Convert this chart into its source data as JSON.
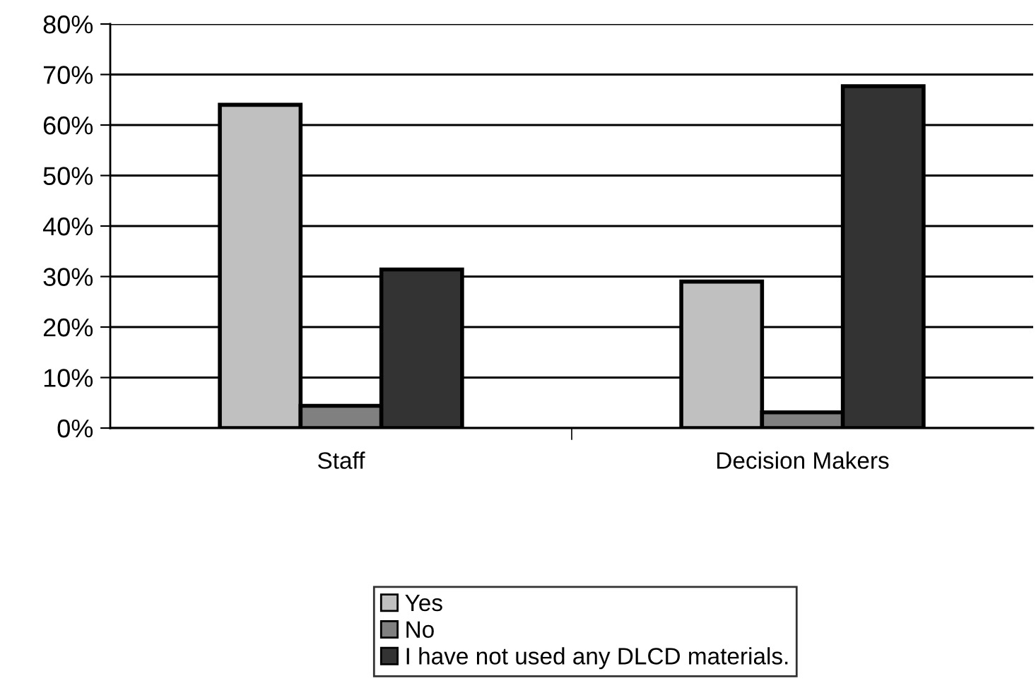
{
  "chart_data": {
    "type": "bar",
    "categories": [
      "Staff",
      "Decision Makers"
    ],
    "series": [
      {
        "name": "Yes",
        "color": "#c0c0c0",
        "values": [
          64,
          29
        ]
      },
      {
        "name": "No",
        "color": "#808080",
        "values": [
          4.4,
          3.1
        ]
      },
      {
        "name": "I have not used any DLCD materials.",
        "color": "#333333",
        "values": [
          31.4,
          67.7
        ]
      }
    ],
    "ylim": [
      0,
      80
    ],
    "yticks": [
      {
        "value": 0,
        "label": "0%"
      },
      {
        "value": 10,
        "label": "10%"
      },
      {
        "value": 20,
        "label": "20%"
      },
      {
        "value": 30,
        "label": "30%"
      },
      {
        "value": 40,
        "label": "40%"
      },
      {
        "value": 50,
        "label": "50%"
      },
      {
        "value": 60,
        "label": "60%"
      },
      {
        "value": 70,
        "label": "70%"
      },
      {
        "value": 80,
        "label": "80%"
      }
    ],
    "grid": "y",
    "legend": "bottom"
  }
}
